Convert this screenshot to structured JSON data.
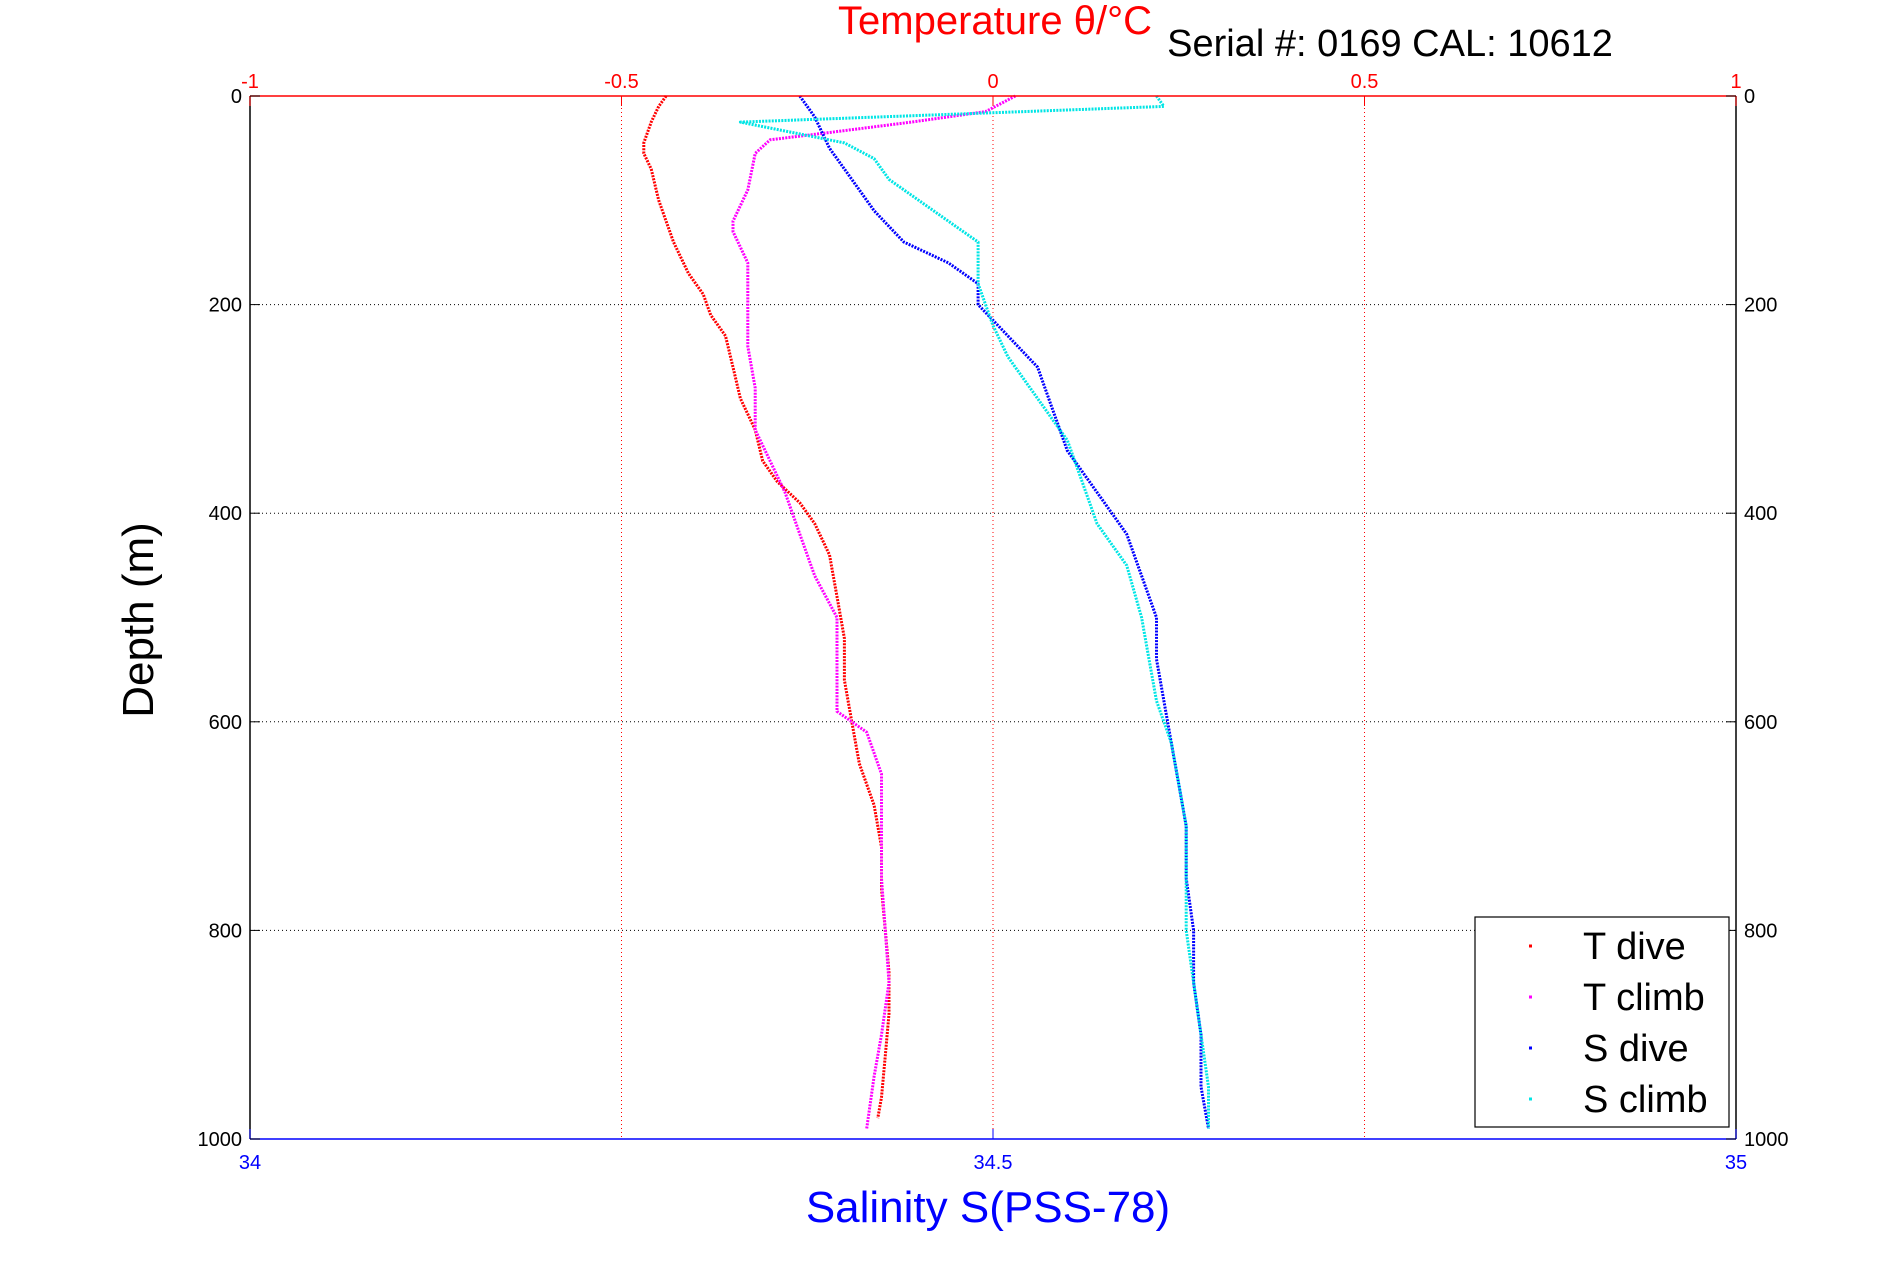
{
  "chart_data": {
    "type": "line",
    "top_title": "Temperature θ/°C",
    "serial_label": "Serial #: 0169 CAL: 10612",
    "xlabel": "Salinity S(PSS-78)",
    "ylabel": "Depth (m)",
    "temperature_axis": {
      "range": [
        -1,
        1
      ],
      "ticks": [
        -1,
        -0.5,
        0,
        0.5,
        1
      ],
      "tick_labels": [
        "-1",
        "-0.5",
        "0",
        "0.5",
        "1"
      ],
      "color": "#ff0000"
    },
    "salinity_axis": {
      "range": [
        34,
        35
      ],
      "ticks": [
        34,
        34.5,
        35
      ],
      "tick_labels": [
        "34",
        "34.5",
        "35"
      ],
      "color": "#0000ff"
    },
    "depth_axis": {
      "range": [
        0,
        1000
      ],
      "reversed": true,
      "ticks": [
        0,
        200,
        400,
        600,
        800,
        1000
      ],
      "tick_labels": [
        "0",
        "200",
        "400",
        "600",
        "800",
        "1000"
      ]
    },
    "grid": true,
    "legend_position": "bottom-right",
    "series": [
      {
        "name": "T dive",
        "axis": "temperature",
        "color": "#ff0000",
        "points": [
          [
            -0.44,
            0
          ],
          [
            -0.45,
            10
          ],
          [
            -0.46,
            25
          ],
          [
            -0.47,
            45
          ],
          [
            -0.47,
            55
          ],
          [
            -0.46,
            70
          ],
          [
            -0.45,
            100
          ],
          [
            -0.43,
            140
          ],
          [
            -0.41,
            170
          ],
          [
            -0.39,
            190
          ],
          [
            -0.38,
            210
          ],
          [
            -0.36,
            230
          ],
          [
            -0.35,
            260
          ],
          [
            -0.34,
            290
          ],
          [
            -0.32,
            320
          ],
          [
            -0.31,
            350
          ],
          [
            -0.29,
            370
          ],
          [
            -0.26,
            390
          ],
          [
            -0.24,
            410
          ],
          [
            -0.22,
            440
          ],
          [
            -0.21,
            480
          ],
          [
            -0.2,
            520
          ],
          [
            -0.2,
            560
          ],
          [
            -0.19,
            600
          ],
          [
            -0.18,
            640
          ],
          [
            -0.16,
            680
          ],
          [
            -0.15,
            720
          ],
          [
            -0.15,
            760
          ],
          [
            -0.145,
            800
          ],
          [
            -0.14,
            840
          ],
          [
            -0.14,
            880
          ],
          [
            -0.145,
            920
          ],
          [
            -0.15,
            960
          ],
          [
            -0.155,
            980
          ]
        ]
      },
      {
        "name": "T climb",
        "axis": "temperature",
        "color": "#ff00ff",
        "points": [
          [
            0.03,
            0
          ],
          [
            -0.01,
            15
          ],
          [
            -0.11,
            25
          ],
          [
            -0.22,
            35
          ],
          [
            -0.3,
            42
          ],
          [
            -0.32,
            55
          ],
          [
            -0.33,
            90
          ],
          [
            -0.35,
            120
          ],
          [
            -0.35,
            130
          ],
          [
            -0.33,
            160
          ],
          [
            -0.33,
            200
          ],
          [
            -0.33,
            240
          ],
          [
            -0.32,
            280
          ],
          [
            -0.32,
            320
          ],
          [
            -0.3,
            350
          ],
          [
            -0.28,
            380
          ],
          [
            -0.26,
            420
          ],
          [
            -0.24,
            460
          ],
          [
            -0.21,
            500
          ],
          [
            -0.21,
            550
          ],
          [
            -0.21,
            590
          ],
          [
            -0.17,
            610
          ],
          [
            -0.15,
            650
          ],
          [
            -0.15,
            700
          ],
          [
            -0.15,
            750
          ],
          [
            -0.145,
            800
          ],
          [
            -0.14,
            850
          ],
          [
            -0.15,
            900
          ],
          [
            -0.16,
            940
          ],
          [
            -0.17,
            990
          ]
        ]
      },
      {
        "name": "S dive",
        "axis": "salinity",
        "color": "#0000ff",
        "points": [
          [
            34.37,
            0
          ],
          [
            34.38,
            20
          ],
          [
            34.39,
            50
          ],
          [
            34.4,
            70
          ],
          [
            34.41,
            90
          ],
          [
            34.42,
            110
          ],
          [
            34.44,
            140
          ],
          [
            34.47,
            160
          ],
          [
            34.49,
            180
          ],
          [
            34.49,
            200
          ],
          [
            34.51,
            230
          ],
          [
            34.53,
            260
          ],
          [
            34.54,
            300
          ],
          [
            34.55,
            340
          ],
          [
            34.57,
            380
          ],
          [
            34.59,
            420
          ],
          [
            34.6,
            460
          ],
          [
            34.61,
            500
          ],
          [
            34.61,
            540
          ],
          [
            34.615,
            580
          ],
          [
            34.62,
            620
          ],
          [
            34.625,
            660
          ],
          [
            34.63,
            700
          ],
          [
            34.63,
            750
          ],
          [
            34.635,
            800
          ],
          [
            34.635,
            850
          ],
          [
            34.64,
            900
          ],
          [
            34.64,
            950
          ],
          [
            34.645,
            990
          ]
        ]
      },
      {
        "name": "S climb",
        "axis": "salinity",
        "color": "#00e5e5",
        "points": [
          [
            34.61,
            0
          ],
          [
            34.615,
            10
          ],
          [
            34.33,
            25
          ],
          [
            34.4,
            45
          ],
          [
            34.42,
            60
          ],
          [
            34.43,
            80
          ],
          [
            34.45,
            100
          ],
          [
            34.47,
            120
          ],
          [
            34.49,
            140
          ],
          [
            34.49,
            180
          ],
          [
            34.5,
            220
          ],
          [
            34.51,
            250
          ],
          [
            34.53,
            290
          ],
          [
            34.55,
            330
          ],
          [
            34.56,
            370
          ],
          [
            34.57,
            410
          ],
          [
            34.59,
            450
          ],
          [
            34.6,
            500
          ],
          [
            34.605,
            540
          ],
          [
            34.61,
            580
          ],
          [
            34.62,
            620
          ],
          [
            34.625,
            660
          ],
          [
            34.63,
            700
          ],
          [
            34.63,
            750
          ],
          [
            34.63,
            800
          ],
          [
            34.635,
            850
          ],
          [
            34.64,
            900
          ],
          [
            34.645,
            950
          ],
          [
            34.645,
            990
          ]
        ]
      }
    ]
  }
}
